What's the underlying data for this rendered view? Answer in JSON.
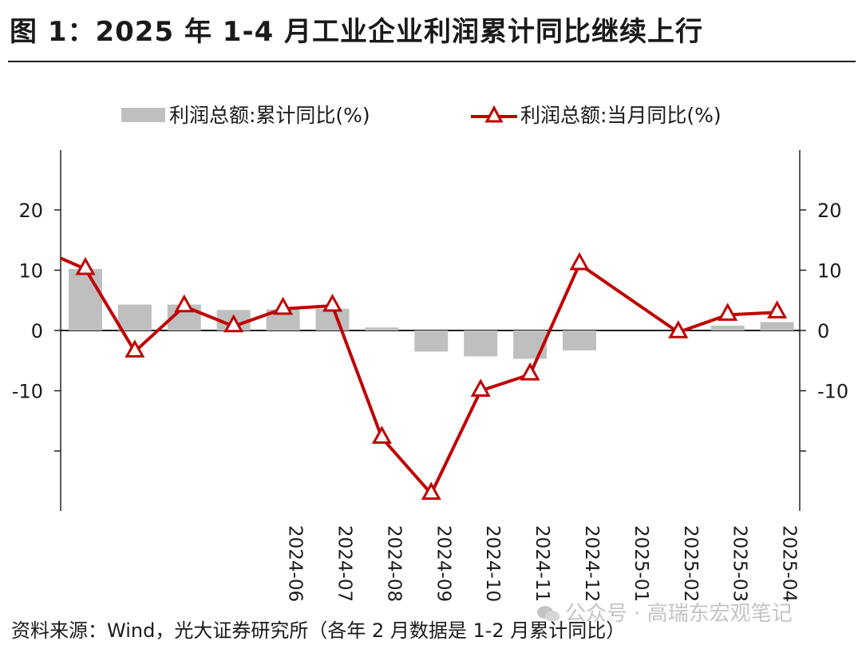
{
  "header": {
    "title": "图 1：2025 年 1-4 月工业企业利润累计同比继续上行"
  },
  "footer": {
    "source": "资料来源：Wind，光大证券研究所（各年 2 月数据是 1-2 月累计同比）"
  },
  "watermark": {
    "text": "公众号 · 高瑞东宏观笔记"
  },
  "chart_data": {
    "type": "bar",
    "x_tick_labels": [
      "2024-06",
      "2024-07",
      "2024-08",
      "2024-09",
      "2024-10",
      "2024-11",
      "2024-12",
      "2025-01",
      "2025-02",
      "2025-03",
      "2025-04"
    ],
    "categories": [
      "",
      "",
      "",
      "",
      "2024-06",
      "2024-07",
      "2024-08",
      "2024-09",
      "2024-10",
      "2024-11",
      "2024-12",
      "2025-01",
      "2025-02",
      "2025-03",
      "2025-04"
    ],
    "series": [
      {
        "name": "利润总额:累计同比(%)",
        "type": "bar",
        "color": "#bfbfbf",
        "values": [
          10.2,
          4.3,
          4.3,
          3.4,
          3.5,
          3.6,
          0.5,
          -3.5,
          -4.3,
          -4.7,
          -3.3,
          null,
          null,
          0.8,
          1.4
        ]
      },
      {
        "name": "利润总额:当月同比(%)",
        "type": "line",
        "marker": "triangle",
        "color": "#c00000",
        "values": [
          10.2,
          -3.5,
          4.0,
          0.7,
          3.6,
          4.1,
          -17.8,
          -27.1,
          -10.0,
          -7.3,
          11.0,
          null,
          -0.3,
          2.6,
          3.0
        ]
      }
    ],
    "line_lead_in_value": 12,
    "y_tick_labels": [
      "20",
      "10",
      "0",
      "-10"
    ],
    "ylim": [
      -30,
      30
    ],
    "legend_position": "top",
    "grid": false
  }
}
